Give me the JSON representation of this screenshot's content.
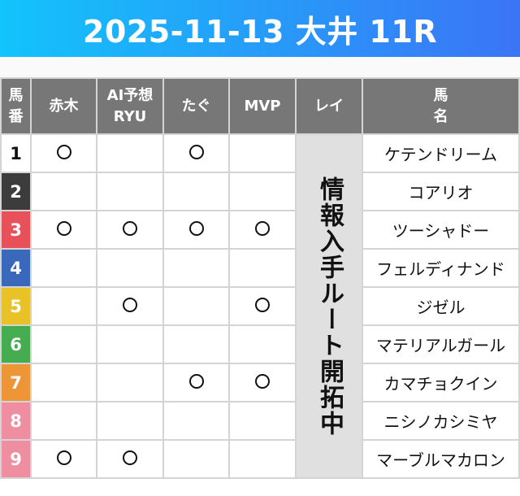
{
  "title": "2025-11-13 大井 11R",
  "headers": {
    "number": "馬\n番",
    "number_lines": [
      "馬",
      "番"
    ],
    "akagi": "赤木",
    "ai_lines": [
      "AI予想",
      "RYU"
    ],
    "tagu": "たぐ",
    "mvp": "MVP",
    "rei": "レイ",
    "name_lines": [
      "馬",
      "名"
    ]
  },
  "rei_note": "情報入手ルート開拓中",
  "mark_symbol": "○",
  "rows": [
    {
      "number": "1",
      "color": "#ffffff",
      "text_color": "#111111",
      "name": "ケテンドリーム",
      "akagi": true,
      "ai": false,
      "tagu": true,
      "mvp": false
    },
    {
      "number": "2",
      "color": "#3c3c3c",
      "text_color": "#ffffff",
      "name": "コアリオ",
      "akagi": false,
      "ai": false,
      "tagu": false,
      "mvp": false
    },
    {
      "number": "3",
      "color": "#e8505a",
      "text_color": "#ffffff",
      "name": "ツーシャドー",
      "akagi": true,
      "ai": true,
      "tagu": true,
      "mvp": true
    },
    {
      "number": "4",
      "color": "#3a68bb",
      "text_color": "#ffffff",
      "name": "フェルディナンド",
      "akagi": false,
      "ai": false,
      "tagu": false,
      "mvp": false
    },
    {
      "number": "5",
      "color": "#e8c227",
      "text_color": "#ffffff",
      "name": "ジゼル",
      "akagi": false,
      "ai": true,
      "tagu": false,
      "mvp": true
    },
    {
      "number": "6",
      "color": "#45ad4f",
      "text_color": "#ffffff",
      "name": "マテリアルガール",
      "akagi": false,
      "ai": false,
      "tagu": false,
      "mvp": false
    },
    {
      "number": "7",
      "color": "#ee9637",
      "text_color": "#ffffff",
      "name": "カマチョクイン",
      "akagi": false,
      "ai": false,
      "tagu": true,
      "mvp": true
    },
    {
      "number": "8",
      "color": "#ee8ea0",
      "text_color": "#ffffff",
      "name": "ニシノカシミヤ",
      "akagi": false,
      "ai": false,
      "tagu": false,
      "mvp": false
    },
    {
      "number": "9",
      "color": "#ee8ea0",
      "text_color": "#ffffff",
      "name": "マーブルマカロン",
      "akagi": true,
      "ai": true,
      "tagu": false,
      "mvp": false
    }
  ]
}
